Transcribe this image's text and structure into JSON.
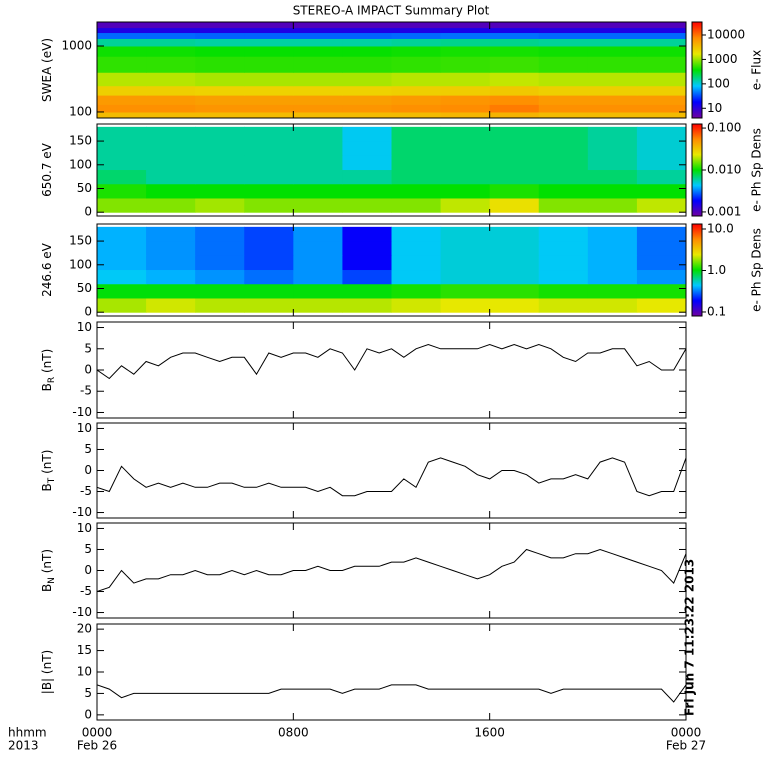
{
  "title": "STEREO-A IMPACT Summary Plot",
  "timestamp": "Fri Jun  7 11:23:22 2013",
  "x_axis": {
    "xlim": [
      0,
      24
    ],
    "xticks": [
      {
        "value": 0,
        "label": "0000"
      },
      {
        "value": 8,
        "label": "0800"
      },
      {
        "value": 16,
        "label": "1600"
      },
      {
        "value": 24,
        "label": "0000"
      }
    ],
    "row_labels": [
      "hhmm",
      "2013"
    ],
    "date_labels": [
      {
        "value": 0,
        "label": "Feb 26"
      },
      {
        "value": 24,
        "label": "Feb 27"
      }
    ]
  },
  "chart_data": [
    {
      "type": "heatmap",
      "ylabel": [
        "SWEA (eV)"
      ],
      "ylog": true,
      "ylim": [
        81,
        2310
      ],
      "yticks": [
        100,
        1000
      ],
      "colorbar_label": "e- Flux",
      "clim": [
        4,
        34000
      ],
      "cticks": [
        10,
        100,
        1000,
        10000
      ],
      "colormap": [
        "#7000a0",
        "#0000ff",
        "#00c8ff",
        "#00e000",
        "#e8e800",
        "#ff8c00",
        "#ff0000"
      ],
      "x_edges": [
        0,
        2,
        4,
        6,
        8,
        10,
        12,
        14,
        16,
        18,
        20,
        22,
        24
      ],
      "y_edges": [
        81,
        100,
        130,
        180,
        250,
        400,
        700,
        1000,
        1300,
        1600,
        1900,
        2310
      ],
      "values": [
        [
          3500,
          3500,
          3500,
          3500,
          3500,
          3500,
          3500,
          3800,
          4000,
          3500,
          3500,
          3500
        ],
        [
          7000,
          7000,
          6500,
          6500,
          6500,
          6500,
          7000,
          7500,
          9000,
          7000,
          7000,
          7000
        ],
        [
          6000,
          6000,
          5500,
          5500,
          5500,
          5500,
          6000,
          6500,
          7000,
          6000,
          6000,
          6000
        ],
        [
          2500,
          2500,
          2400,
          2400,
          2400,
          2400,
          2500,
          2600,
          2800,
          2500,
          2500,
          2500
        ],
        [
          1200,
          1200,
          1100,
          1100,
          1100,
          1100,
          1200,
          1200,
          1300,
          1200,
          1200,
          1200
        ],
        [
          500,
          500,
          480,
          480,
          480,
          480,
          500,
          520,
          540,
          500,
          500,
          500
        ],
        [
          400,
          400,
          380,
          380,
          380,
          380,
          400,
          420,
          420,
          400,
          400,
          400
        ],
        [
          150,
          150,
          140,
          140,
          140,
          140,
          150,
          160,
          160,
          150,
          150,
          150
        ],
        [
          40,
          40,
          38,
          38,
          38,
          38,
          40,
          42,
          42,
          40,
          40,
          40
        ],
        [
          12,
          12,
          12,
          12,
          12,
          12,
          12,
          13,
          13,
          12,
          12,
          12
        ],
        [
          6,
          6,
          6,
          6,
          6,
          6,
          6,
          6,
          6,
          6,
          6,
          6
        ]
      ]
    },
    {
      "type": "heatmap",
      "ylabel": [
        "650.7 eV"
      ],
      "ylog": false,
      "ylim": [
        -8,
        186
      ],
      "yticks": [
        0,
        50,
        100,
        150
      ],
      "colorbar_label": "e- Ph Sp Dens",
      "clim": [
        0.0008,
        0.125
      ],
      "cticks": [
        {
          "value": 0.001,
          "label": "0.001"
        },
        {
          "value": 0.01,
          "label": "0.010"
        },
        {
          "value": 0.1,
          "label": "0.100"
        }
      ],
      "colormap": [
        "#7000a0",
        "#0000ff",
        "#00c8ff",
        "#00e000",
        "#e8e800",
        "#ff8c00",
        "#ff0000"
      ],
      "x_edges": [
        0,
        2,
        4,
        6,
        8,
        10,
        12,
        14,
        16,
        18,
        20,
        22,
        24
      ],
      "y_edges": [
        0,
        30,
        60,
        90,
        120,
        150,
        180
      ],
      "values": [
        [
          0.016,
          0.016,
          0.018,
          0.016,
          0.016,
          0.016,
          0.016,
          0.02,
          0.025,
          0.016,
          0.016,
          0.02
        ],
        [
          0.011,
          0.01,
          0.01,
          0.01,
          0.01,
          0.01,
          0.01,
          0.01,
          0.011,
          0.01,
          0.01,
          0.01
        ],
        [
          0.007,
          0.006,
          0.006,
          0.006,
          0.006,
          0.006,
          0.007,
          0.007,
          0.007,
          0.007,
          0.007,
          0.006
        ],
        [
          0.006,
          0.006,
          0.006,
          0.006,
          0.006,
          0.0045,
          0.007,
          0.007,
          0.007,
          0.007,
          0.006,
          0.005
        ],
        [
          0.006,
          0.006,
          0.006,
          0.006,
          0.006,
          0.0045,
          0.007,
          0.007,
          0.007,
          0.007,
          0.006,
          0.005
        ],
        [
          0.006,
          0.006,
          0.006,
          0.006,
          0.006,
          0.0045,
          0.007,
          0.007,
          0.007,
          0.007,
          0.006,
          0.005
        ]
      ]
    },
    {
      "type": "heatmap",
      "ylabel": [
        "246.6 eV"
      ],
      "ylog": false,
      "ylim": [
        -8,
        186
      ],
      "yticks": [
        0,
        50,
        100,
        150
      ],
      "colorbar_label": "e- Ph Sp Dens",
      "clim": [
        0.08,
        13.2
      ],
      "cticks": [
        0.1,
        {
          "value": 1,
          "label": "1.0"
        },
        {
          "value": 10,
          "label": "10.0"
        }
      ],
      "colormap": [
        "#7000a0",
        "#0000ff",
        "#00c8ff",
        "#00e000",
        "#e8e800",
        "#ff8c00",
        "#ff0000"
      ],
      "x_edges": [
        0,
        2,
        4,
        6,
        8,
        10,
        12,
        14,
        16,
        18,
        20,
        22,
        24
      ],
      "y_edges": [
        0,
        30,
        60,
        90,
        120,
        150,
        180
      ],
      "values": [
        [
          1.9,
          2.2,
          2.0,
          2.0,
          2.0,
          2.0,
          2.2,
          2.4,
          2.4,
          2.2,
          2.2,
          2.4
        ],
        [
          1.0,
          1.0,
          1.0,
          1.0,
          1.0,
          1.0,
          1.1,
          1.2,
          1.2,
          1.1,
          1.1,
          1.1
        ],
        [
          0.45,
          0.4,
          0.35,
          0.3,
          0.35,
          0.25,
          0.45,
          0.5,
          0.5,
          0.45,
          0.4,
          0.35
        ],
        [
          0.4,
          0.35,
          0.3,
          0.25,
          0.35,
          0.18,
          0.45,
          0.5,
          0.5,
          0.45,
          0.4,
          0.3
        ],
        [
          0.4,
          0.35,
          0.3,
          0.25,
          0.35,
          0.18,
          0.45,
          0.5,
          0.5,
          0.45,
          0.4,
          0.3
        ],
        [
          0.4,
          0.35,
          0.3,
          0.25,
          0.35,
          0.18,
          0.45,
          0.5,
          0.5,
          0.45,
          0.4,
          0.3
        ]
      ]
    },
    {
      "type": "line",
      "ylabel": [
        "B",
        "R",
        " (nT)"
      ],
      "ylim": [
        -11.3,
        11.3
      ],
      "yticks": [
        -10,
        -5,
        0,
        5,
        10
      ],
      "color": "#000000",
      "x": [
        0,
        0.5,
        1,
        1.5,
        2,
        2.5,
        3,
        3.5,
        4,
        4.5,
        5,
        5.5,
        6,
        6.5,
        7,
        7.5,
        8,
        8.5,
        9,
        9.5,
        10,
        10.5,
        11,
        11.5,
        12,
        12.5,
        13,
        13.5,
        14,
        14.5,
        15,
        15.5,
        16,
        16.5,
        17,
        17.5,
        18,
        18.5,
        19,
        19.5,
        20,
        20.5,
        21,
        21.5,
        22,
        22.5,
        23,
        23.5,
        24
      ],
      "values": [
        0,
        -2,
        1,
        -1,
        2,
        1,
        3,
        4,
        4,
        3,
        2,
        3,
        3,
        -1,
        4,
        3,
        4,
        4,
        3,
        5,
        4,
        0,
        5,
        4,
        5,
        3,
        5,
        6,
        5,
        5,
        5,
        5,
        6,
        5,
        6,
        5,
        6,
        5,
        3,
        2,
        4,
        4,
        5,
        5,
        1,
        2,
        0,
        0,
        5
      ]
    },
    {
      "type": "line",
      "ylabel": [
        "B",
        "T",
        " (nT)"
      ],
      "ylim": [
        -11.3,
        11.3
      ],
      "yticks": [
        -10,
        -5,
        0,
        5,
        10
      ],
      "color": "#000000",
      "x": [
        0,
        0.5,
        1,
        1.5,
        2,
        2.5,
        3,
        3.5,
        4,
        4.5,
        5,
        5.5,
        6,
        6.5,
        7,
        7.5,
        8,
        8.5,
        9,
        9.5,
        10,
        10.5,
        11,
        11.5,
        12,
        12.5,
        13,
        13.5,
        14,
        14.5,
        15,
        15.5,
        16,
        16.5,
        17,
        17.5,
        18,
        18.5,
        19,
        19.5,
        20,
        20.5,
        21,
        21.5,
        22,
        22.5,
        23,
        23.5,
        24
      ],
      "values": [
        -4,
        -5,
        1,
        -2,
        -4,
        -3,
        -4,
        -3,
        -4,
        -4,
        -3,
        -3,
        -4,
        -4,
        -3,
        -4,
        -4,
        -4,
        -5,
        -4,
        -6,
        -6,
        -5,
        -5,
        -5,
        -2,
        -4,
        2,
        3,
        2,
        1,
        -1,
        -2,
        0,
        0,
        -1,
        -3,
        -2,
        -2,
        -1,
        -2,
        2,
        3,
        2,
        -5,
        -6,
        -5,
        -5,
        3
      ]
    },
    {
      "type": "line",
      "ylabel": [
        "B",
        "N",
        " (nT)"
      ],
      "ylim": [
        -11.3,
        11.3
      ],
      "yticks": [
        -10,
        -5,
        0,
        5,
        10
      ],
      "color": "#000000",
      "x": [
        0,
        0.5,
        1,
        1.5,
        2,
        2.5,
        3,
        3.5,
        4,
        4.5,
        5,
        5.5,
        6,
        6.5,
        7,
        7.5,
        8,
        8.5,
        9,
        9.5,
        10,
        10.5,
        11,
        11.5,
        12,
        12.5,
        13,
        13.5,
        14,
        14.5,
        15,
        15.5,
        16,
        16.5,
        17,
        17.5,
        18,
        18.5,
        19,
        19.5,
        20,
        20.5,
        21,
        21.5,
        22,
        22.5,
        23,
        23.5,
        24
      ],
      "values": [
        -5,
        -4,
        0,
        -3,
        -2,
        -2,
        -1,
        -1,
        0,
        -1,
        -1,
        0,
        -1,
        0,
        -1,
        -1,
        0,
        0,
        1,
        0,
        0,
        1,
        1,
        1,
        2,
        2,
        3,
        2,
        1,
        0,
        -1,
        -2,
        -1,
        1,
        2,
        5,
        4,
        3,
        3,
        4,
        4,
        5,
        4,
        3,
        2,
        1,
        0,
        -3,
        4
      ]
    },
    {
      "type": "line",
      "ylabel": [
        "|B| (nT)"
      ],
      "ylim": [
        -1.2,
        21.2
      ],
      "yticks": [
        0,
        5,
        10,
        15,
        20
      ],
      "color": "#000000",
      "x": [
        0,
        0.5,
        1,
        1.5,
        2,
        2.5,
        3,
        3.5,
        4,
        4.5,
        5,
        5.5,
        6,
        6.5,
        7,
        7.5,
        8,
        8.5,
        9,
        9.5,
        10,
        10.5,
        11,
        11.5,
        12,
        12.5,
        13,
        13.5,
        14,
        14.5,
        15,
        15.5,
        16,
        16.5,
        17,
        17.5,
        18,
        18.5,
        19,
        19.5,
        20,
        20.5,
        21,
        21.5,
        22,
        22.5,
        23,
        23.5,
        24
      ],
      "values": [
        7,
        6,
        4,
        5,
        5,
        5,
        5,
        5,
        5,
        5,
        5,
        5,
        5,
        5,
        5,
        6,
        6,
        6,
        6,
        6,
        5,
        6,
        6,
        6,
        7,
        7,
        7,
        6,
        6,
        6,
        6,
        6,
        6,
        6,
        6,
        6,
        6,
        5,
        6,
        6,
        6,
        6,
        6,
        6,
        6,
        6,
        6,
        3,
        7
      ]
    }
  ]
}
